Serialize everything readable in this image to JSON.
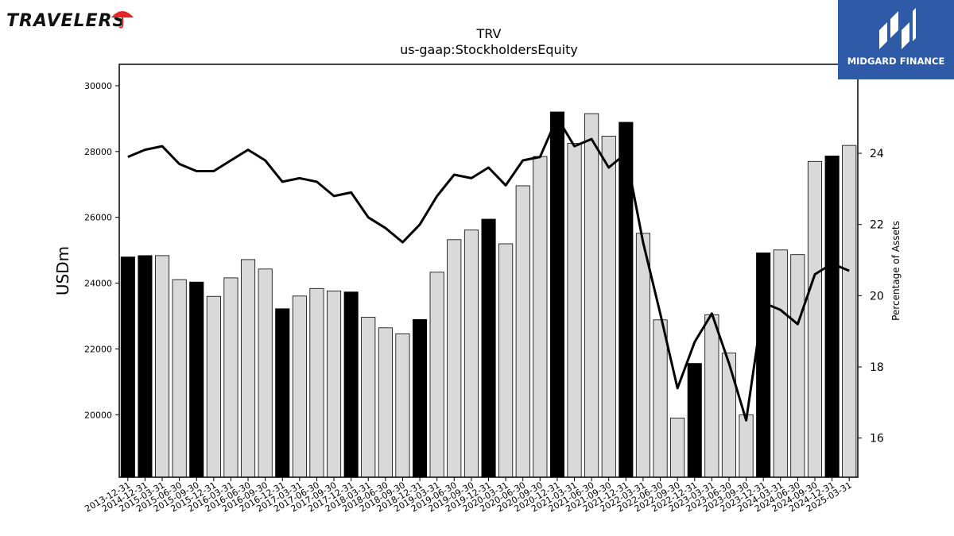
{
  "brand": {
    "name": "TRAVELERS"
  },
  "badge": {
    "name": "MIDGARD FINANCE"
  },
  "chart_data": {
    "type": "bar",
    "title": "TRV",
    "subtitle": "us-gaap:StockholdersEquity",
    "ylabel": "USDm",
    "y2label": "Percentage of Assets",
    "ylim": [
      18100,
      30650
    ],
    "y2lim": [
      14.9,
      26.5
    ],
    "yticks": [
      20000,
      22000,
      24000,
      26000,
      28000,
      30000
    ],
    "y2ticks": [
      16,
      18,
      20,
      22,
      24
    ],
    "categories": [
      "2013-12-31",
      "2014-12-31",
      "2015-03-31",
      "2015-06-30",
      "2015-09-30",
      "2015-12-31",
      "2016-03-31",
      "2016-06-30",
      "2016-09-30",
      "2016-12-31",
      "2017-03-31",
      "2017-06-30",
      "2017-09-30",
      "2017-12-31",
      "2018-03-31",
      "2018-06-30",
      "2018-09-30",
      "2018-12-31",
      "2019-03-31",
      "2019-06-30",
      "2019-09-30",
      "2019-12-31",
      "2020-03-31",
      "2020-06-30",
      "2020-09-30",
      "2020-12-31",
      "2021-03-31",
      "2021-06-30",
      "2021-09-30",
      "2021-12-31",
      "2022-03-31",
      "2022-06-30",
      "2022-09-30",
      "2022-12-31",
      "2023-03-31",
      "2023-06-30",
      "2023-09-30",
      "2023-12-31",
      "2024-03-31",
      "2024-06-30",
      "2024-09-30",
      "2024-12-31",
      "2025-03-31"
    ],
    "series": [
      {
        "values": [
          24796,
          24836,
          24836,
          24108,
          24032,
          23598,
          24160,
          24716,
          24429,
          23221,
          23608,
          23836,
          23761,
          23731,
          22960,
          22643,
          22460,
          22894,
          24331,
          25320,
          25612,
          25943,
          25196,
          26958,
          27847,
          29201,
          28247,
          29152,
          28467,
          28887,
          25511,
          22883,
          19900,
          21560,
          23041,
          21872,
          20000,
          24918,
          25007,
          24866,
          27699,
          27864,
          28185
        ]
      },
      {
        "values": [
          23.9,
          24.1,
          24.2,
          23.7,
          23.5,
          23.5,
          23.8,
          24.1,
          23.8,
          23.2,
          23.3,
          23.2,
          22.8,
          22.9,
          22.2,
          21.9,
          21.5,
          22.0,
          22.8,
          23.4,
          23.3,
          23.6,
          23.1,
          23.8,
          23.9,
          25.0,
          24.2,
          24.4,
          23.6,
          24.0,
          21.5,
          19.5,
          17.4,
          18.7,
          19.5,
          18.1,
          16.5,
          19.8,
          19.6,
          19.2,
          20.6,
          20.9,
          20.7
        ]
      }
    ],
    "highlight_colors": {
      "dark": "#000000",
      "light": "#d9d9d9"
    },
    "highlighted": [
      "2013-12-31",
      "2014-12-31",
      "2015-09-30",
      "2016-12-31",
      "2017-12-31",
      "2018-12-31",
      "2019-12-31",
      "2020-12-31",
      "2021-12-31",
      "2022-12-31",
      "2023-12-31",
      "2024-12-31"
    ]
  }
}
